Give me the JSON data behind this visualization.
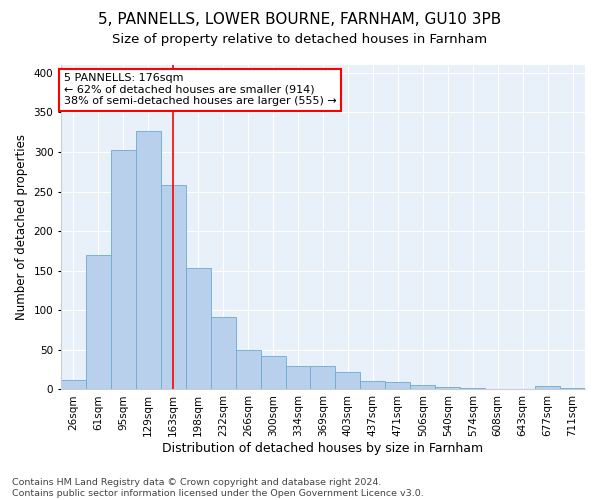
{
  "title1": "5, PANNELLS, LOWER BOURNE, FARNHAM, GU10 3PB",
  "title2": "Size of property relative to detached houses in Farnham",
  "xlabel": "Distribution of detached houses by size in Farnham",
  "ylabel": "Number of detached properties",
  "categories": [
    "26sqm",
    "61sqm",
    "95sqm",
    "129sqm",
    "163sqm",
    "198sqm",
    "232sqm",
    "266sqm",
    "300sqm",
    "334sqm",
    "369sqm",
    "403sqm",
    "437sqm",
    "471sqm",
    "506sqm",
    "540sqm",
    "574sqm",
    "608sqm",
    "643sqm",
    "677sqm",
    "711sqm"
  ],
  "values": [
    12,
    170,
    302,
    327,
    258,
    153,
    91,
    50,
    42,
    30,
    30,
    22,
    11,
    10,
    6,
    3,
    2,
    1,
    1,
    4,
    2
  ],
  "bar_color": "#b8d0eb",
  "bar_edge_color": "#6aaad4",
  "vline_x": 4,
  "vline_color": "red",
  "annotation_text": "5 PANNELLS: 176sqm\n← 62% of detached houses are smaller (914)\n38% of semi-detached houses are larger (555) →",
  "annotation_box_color": "white",
  "annotation_box_edge_color": "red",
  "footnote": "Contains HM Land Registry data © Crown copyright and database right 2024.\nContains public sector information licensed under the Open Government Licence v3.0.",
  "ylim": [
    0,
    410
  ],
  "yticks": [
    0,
    50,
    100,
    150,
    200,
    250,
    300,
    350,
    400
  ],
  "plot_bg_color": "#e8f0fa",
  "title1_fontsize": 11,
  "title2_fontsize": 9.5,
  "xlabel_fontsize": 9,
  "ylabel_fontsize": 8.5,
  "tick_fontsize": 7.5,
  "footnote_fontsize": 6.8,
  "ann_fontsize": 8
}
